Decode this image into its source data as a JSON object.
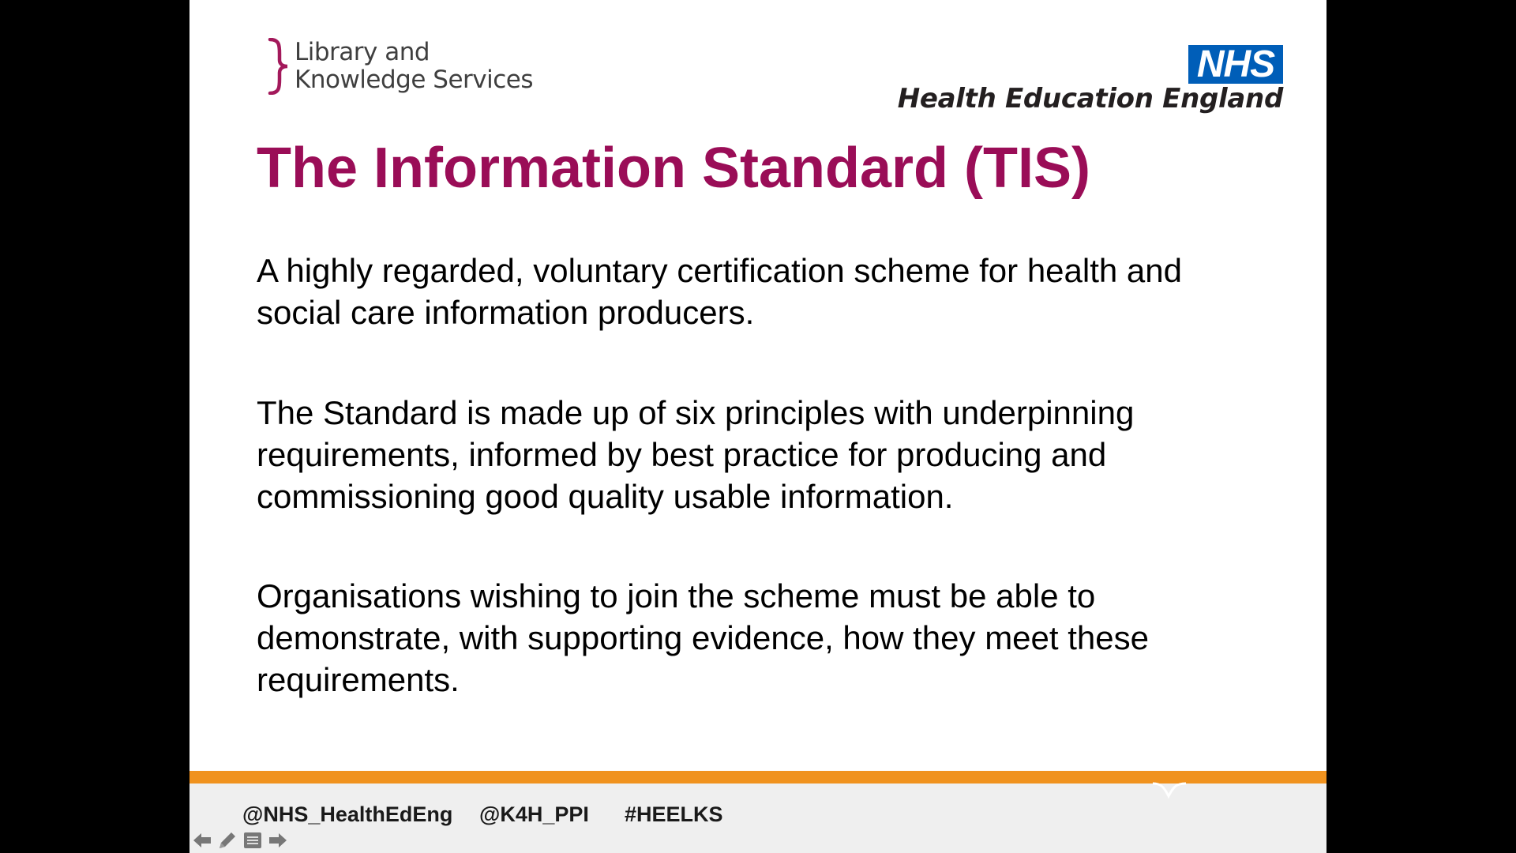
{
  "slide": {
    "lks_logo": {
      "line1": "Library and",
      "line2": "Knowledge Services"
    },
    "nhs_logo": {
      "badge": "NHS",
      "org": "Health Education England"
    },
    "title": "The Information Standard (TIS)",
    "paragraphs": [
      "A highly regarded, voluntary certification scheme for  health and social care information producers.",
      "The Standard is made up of six principles with underpinning requirements, informed by best practice for producing and commissioning good quality usable information.",
      "Organisations wishing to join the scheme must be able to demonstrate, with supporting evidence, how they meet these requirements."
    ],
    "footer": {
      "tags": [
        "@NHS_HealthEdEng",
        "@K4H_PPI",
        "#HEELKS"
      ]
    }
  },
  "controls": {
    "icons": [
      "arrow-left-icon",
      "pen-icon",
      "menu-icon",
      "arrow-right-icon"
    ]
  },
  "colors": {
    "title": "#9a0d57",
    "nhs_blue": "#005eb8",
    "footer_orange": "#f0921e",
    "lks_bracket": "#a3195b"
  }
}
